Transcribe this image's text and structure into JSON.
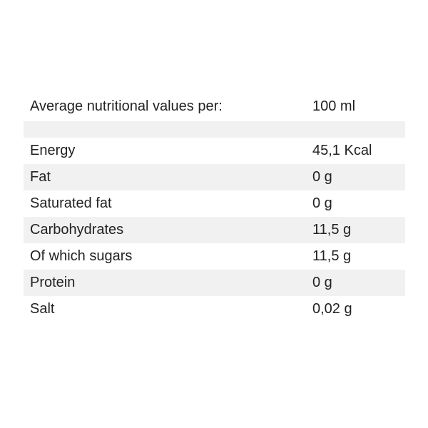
{
  "table": {
    "header": [
      "Average nutritional values per:",
      "100 ml"
    ],
    "rows": [
      [
        "Energy",
        "45,1 Kcal"
      ],
      [
        "Fat",
        "0 g"
      ],
      [
        "Saturated fat",
        "0 g"
      ],
      [
        "Carbohydrates",
        "11,5 g"
      ],
      [
        "Of which sugars",
        "11,5 g"
      ],
      [
        "Protein",
        "0 g"
      ],
      [
        "Salt",
        "0,02 g"
      ]
    ]
  }
}
